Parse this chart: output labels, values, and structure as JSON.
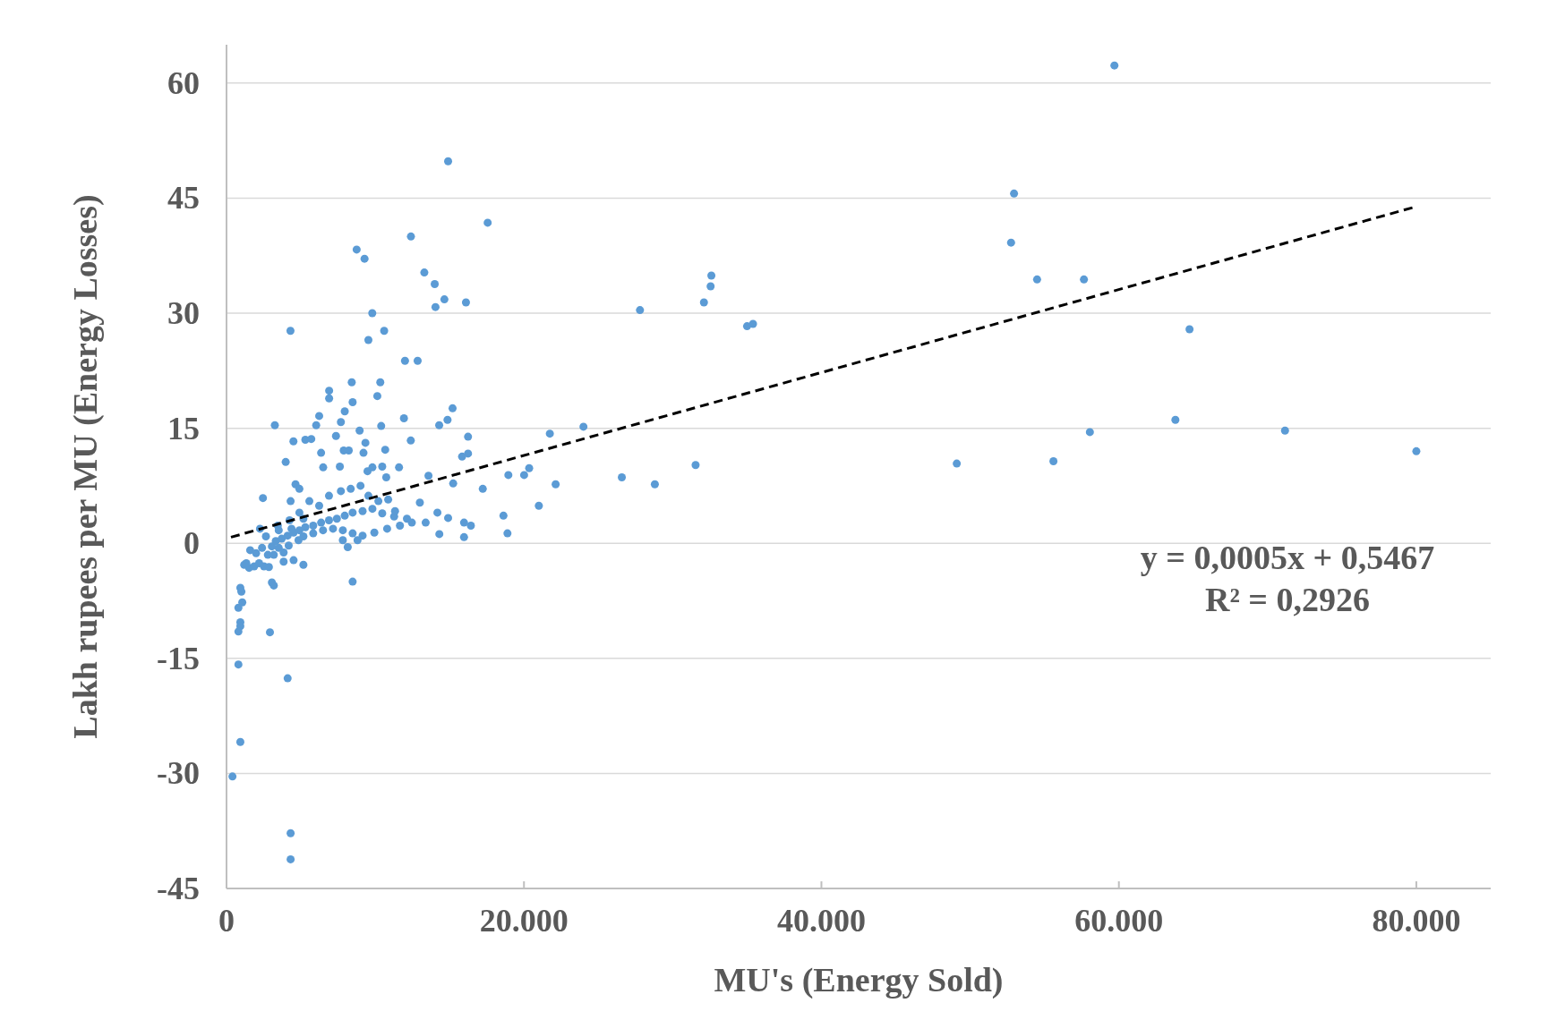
{
  "chart_data": {
    "type": "scatter",
    "xlabel": "MU's (Energy Sold)",
    "ylabel": "Lakh rupees per MU (Energy Losses)",
    "xlim": [
      0,
      85000
    ],
    "ylim": [
      -45,
      65
    ],
    "xticks": [
      0,
      {
        "value": 20000,
        "label": "20.000"
      },
      {
        "value": 40000,
        "label": "40.000"
      },
      {
        "value": 60000,
        "label": "60.000"
      },
      {
        "value": 80000,
        "label": "80.000"
      }
    ],
    "yticks": [
      -45,
      -30,
      -15,
      0,
      15,
      30,
      45,
      60
    ],
    "grid": "y",
    "annotations": [
      "y = 0,0005x + 0,5467",
      "R² = 0,2926"
    ],
    "series": [
      {
        "color": "#5b9bd5",
        "marker": "circle",
        "x": [
          59700,
          14900,
          52950,
          52750,
          17560,
          12400,
          8750,
          9280,
          13300,
          14000,
          14650,
          14050,
          16100,
          9800,
          10600,
          4300,
          9540,
          12000,
          12850,
          27800,
          32600,
          32550,
          32100,
          35000,
          35400,
          54500,
          57650,
          64750,
          49100,
          55600,
          58050,
          63800,
          71170,
          80000,
          24000,
          21740,
          26580,
          28800,
          31540,
          20350,
          20010,
          18950,
          17230,
          22130,
          21000,
          18620,
          18890,
          16430,
          15970,
          15970,
          15200,
          14860,
          14300,
          16240,
          16240,
          15840,
          15240,
          14900,
          14310,
          14180,
          13580,
          13000,
          13390,
          11930,
          12390,
          11600,
          10340,
          8420,
          10140,
          8480,
          7950,
          7690,
          6900,
          6900,
          6230,
          6030,
          3250,
          5300,
          5700,
          4500,
          3980,
          7360,
          8220,
          7880,
          8950,
          9340,
          9210,
          10670,
          10400,
          9810,
          9480,
          10470,
          10740,
          10870,
          6360,
          6500,
          7620,
          4640,
          4900,
          2450,
          4310,
          8480,
          3840,
          3050,
          3180,
          930,
          1000,
          800,
          1060,
          930,
          930,
          800,
          2920,
          800,
          4110,
          930,
          400,
          4310,
          4310,
          1190,
          1520,
          1860,
          2190,
          2520,
          2850,
          1330,
          1590,
          1990,
          2390,
          2780,
          3050,
          3310,
          3710,
          4110,
          4510,
          4900,
          5300,
          5830,
          6360,
          6890,
          7420,
          7950,
          8480,
          9150,
          9810,
          10470,
          11270,
          12130,
          5170,
          5830,
          6490,
          7160,
          7820,
          8480,
          9150,
          9940,
          10800,
          11660,
          12460,
          3510,
          4180,
          4840,
          3180,
          3840,
          4510,
          5170,
          2650,
          2250,
          3450,
          4240,
          4900,
          5570,
          6230,
          6890,
          7690,
          8350,
          9010,
          9540,
          10210,
          11330,
          7820,
          8150,
          8810,
          5170,
          4370,
          3510
        ],
        "values": [
          62.3,
          49.8,
          45.6,
          39.2,
          41.8,
          40.0,
          38.3,
          37.1,
          35.3,
          33.8,
          31.8,
          30.8,
          31.4,
          30.0,
          27.7,
          27.7,
          26.5,
          23.8,
          23.8,
          30.4,
          34.9,
          33.5,
          31.4,
          28.3,
          28.6,
          34.4,
          34.4,
          27.9,
          10.4,
          10.7,
          14.5,
          16.1,
          14.7,
          12.0,
          15.2,
          14.3,
          8.6,
          7.7,
          10.2,
          9.8,
          8.9,
          8.9,
          7.1,
          7.7,
          4.9,
          3.6,
          1.3,
          2.3,
          2.7,
          0.8,
          17.6,
          16.1,
          15.4,
          13.9,
          11.7,
          11.3,
          7.8,
          3.3,
          1.2,
          4.0,
          8.8,
          5.3,
          2.7,
          16.3,
          13.4,
          9.9,
          21.0,
          21.0,
          19.2,
          18.4,
          17.2,
          15.8,
          19.9,
          18.9,
          16.6,
          15.4,
          15.4,
          13.5,
          13.6,
          13.3,
          10.6,
          14.0,
          12.1,
          12.1,
          14.7,
          13.1,
          11.8,
          12.2,
          15.3,
          9.9,
          9.4,
          10.0,
          8.6,
          5.7,
          11.8,
          9.9,
          10.0,
          7.7,
          7.1,
          5.9,
          5.5,
          -5.0,
          -2.4,
          -5.1,
          -5.5,
          -5.8,
          -6.3,
          -8.4,
          -7.7,
          -10.3,
          -10.8,
          -11.5,
          -11.6,
          -15.8,
          -17.6,
          -25.9,
          -30.4,
          -37.8,
          -41.2,
          -2.8,
          -3.2,
          -3.0,
          -2.6,
          -3.0,
          -3.1,
          -2.6,
          -0.9,
          -1.3,
          -0.6,
          -1.5,
          -0.4,
          0.3,
          0.6,
          1.0,
          1.4,
          1.7,
          2.1,
          2.3,
          2.7,
          3.0,
          3.2,
          3.6,
          4.0,
          4.2,
          4.5,
          3.9,
          3.5,
          3.2,
          0.9,
          1.3,
          1.7,
          1.9,
          1.7,
          1.3,
          1.0,
          1.4,
          1.9,
          2.3,
          2.7,
          -0.6,
          -0.3,
          0.4,
          -1.5,
          -1.2,
          -2.2,
          -2.8,
          0.9,
          1.9,
          2.3,
          3.0,
          4.0,
          5.5,
          4.9,
          6.2,
          6.8,
          7.1,
          7.5,
          6.2,
          5.5,
          4.2,
          0.4,
          -0.5,
          0.4,
          3.2,
          1.9,
          1.7
        ]
      },
      {
        "type": "line",
        "color": "#000000",
        "marker": "none",
        "line_style": "dashed",
        "x": [
          300,
          80000
        ],
        "values": [
          0.8,
          43.9
        ]
      }
    ]
  }
}
